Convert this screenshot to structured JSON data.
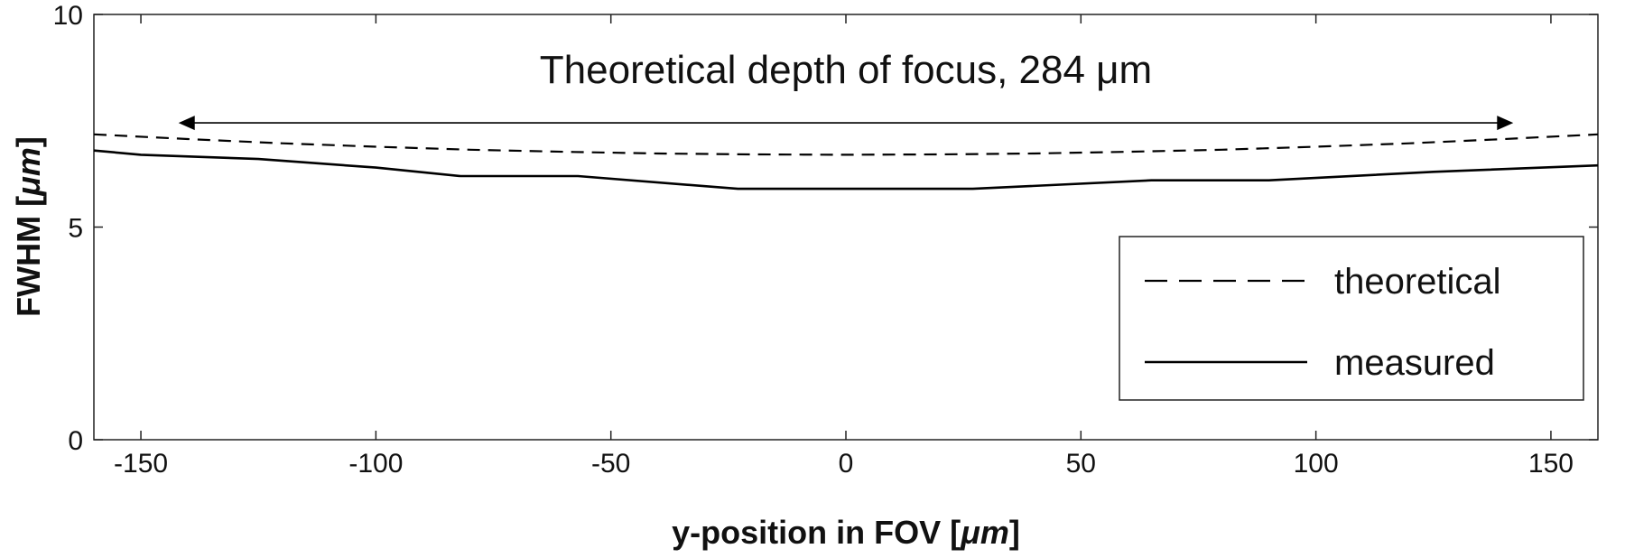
{
  "chart_data": {
    "type": "line",
    "xlabel_prefix": "y-position in FOV [",
    "xlabel_unit": "μm",
    "xlabel_suffix": "]",
    "ylabel_prefix": "FWHM [",
    "ylabel_unit": "μm",
    "ylabel_suffix": "]",
    "xlim": [
      -160,
      160
    ],
    "ylim": [
      0,
      10
    ],
    "xticks": [
      -150,
      -100,
      -50,
      0,
      50,
      100,
      150
    ],
    "xtick_labels": [
      "-150",
      "-100",
      "-50",
      "0",
      "50",
      "100",
      "150"
    ],
    "yticks": [
      0,
      5,
      10
    ],
    "ytick_labels": [
      "0",
      "5",
      "10"
    ],
    "grid": false,
    "legend_position": "bottom-right",
    "annotation": {
      "text": "Theoretical depth of focus, 284 μm",
      "arrow_from": -142,
      "arrow_to": 142,
      "arrow_y": 7.45
    },
    "series": [
      {
        "name": "theoretical",
        "style": "dashed",
        "x": [
          -160,
          -140,
          -120,
          -100,
          -80,
          -60,
          -40,
          -20,
          0,
          20,
          40,
          60,
          80,
          100,
          120,
          140,
          160
        ],
        "y": [
          7.18,
          7.07,
          6.97,
          6.89,
          6.82,
          6.77,
          6.73,
          6.71,
          6.7,
          6.71,
          6.73,
          6.77,
          6.82,
          6.89,
          6.97,
          7.07,
          7.18
        ]
      },
      {
        "name": "measured",
        "style": "solid",
        "x": [
          -160,
          -150,
          -125,
          -100,
          -82,
          -57,
          -23,
          0,
          27,
          65,
          90,
          125,
          160
        ],
        "y": [
          6.8,
          6.7,
          6.6,
          6.4,
          6.2,
          6.2,
          5.9,
          5.9,
          5.9,
          6.1,
          6.1,
          6.3,
          6.45
        ]
      }
    ]
  }
}
